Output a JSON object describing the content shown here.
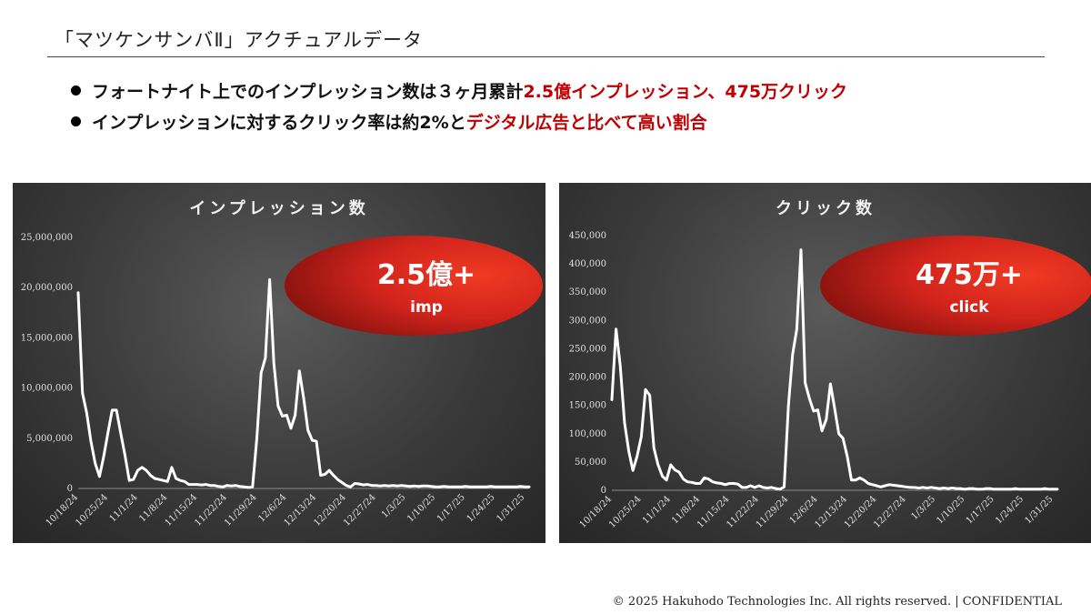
{
  "page": {
    "title": "「マツケンサンバⅡ」アクチュアルデータ",
    "bullets": [
      {
        "plain": "フォートナイト上でのインプレッション数は３ヶ月累計",
        "highlight": "2.5億インプレッション、475万クリック"
      },
      {
        "plain": "インプレッションに対するクリック率は約2%と",
        "highlight": "デジタル広告と比べて高い割合"
      }
    ],
    "footer": "© 2025 Hakuhodo Technologies Inc. All rights reserved. | CONFIDENTIAL"
  },
  "colors": {
    "highlight": "#c00000",
    "line": "#ffffff",
    "badge": "#d7251c",
    "panel_bg": "#3a3a3a"
  },
  "chart_data": [
    {
      "type": "line",
      "title": "インプレッション数",
      "badge": {
        "main": "2.5億+",
        "sub": "imp"
      },
      "ylim": [
        0,
        25000000
      ],
      "yticks": [
        0,
        5000000,
        10000000,
        15000000,
        20000000,
        25000000
      ],
      "ytick_labels": [
        "0",
        "5,000,000",
        "10,000,000",
        "15,000,000",
        "20,000,000",
        "25,000,000"
      ],
      "xtick_labels": [
        "10/18/24",
        "10/25/24",
        "11/1/24",
        "11/8/24",
        "11/15/24",
        "11/22/24",
        "11/29/24",
        "12/6/24",
        "12/13/24",
        "12/20/24",
        "12/27/24",
        "1/3/25",
        "1/10/25",
        "1/17/25",
        "1/24/25",
        "1/31/25"
      ],
      "x_start": "2024-10-18",
      "values": [
        19500000,
        9500000,
        7500000,
        4700000,
        2500000,
        1200000,
        3200000,
        5600000,
        7800000,
        7800000,
        5500000,
        3300000,
        800000,
        900000,
        1800000,
        2100000,
        1800000,
        1300000,
        1000000,
        900000,
        800000,
        700000,
        2100000,
        1000000,
        800000,
        700000,
        400000,
        400000,
        400000,
        350000,
        400000,
        300000,
        300000,
        200000,
        150000,
        300000,
        250000,
        300000,
        200000,
        150000,
        100000,
        150000,
        5000000,
        11500000,
        13000000,
        20800000,
        12500000,
        8200000,
        7200000,
        7300000,
        6000000,
        7300000,
        11700000,
        9000000,
        5800000,
        4800000,
        4700000,
        1300000,
        1400000,
        1800000,
        1300000,
        900000,
        600000,
        300000,
        150000,
        500000,
        450000,
        350000,
        400000,
        300000,
        300000,
        250000,
        300000,
        250000,
        300000,
        250000,
        300000,
        250000,
        200000,
        250000,
        200000,
        250000,
        250000,
        200000,
        150000,
        150000,
        200000,
        150000,
        150000,
        150000,
        150000,
        200000,
        150000,
        150000,
        150000,
        150000,
        150000,
        200000,
        150000,
        150000,
        150000,
        150000,
        150000,
        150000,
        200000,
        150000,
        150000
      ]
    },
    {
      "type": "line",
      "title": "クリック数",
      "badge": {
        "main": "475万+",
        "sub": "click"
      },
      "ylim": [
        0,
        450000
      ],
      "yticks": [
        0,
        50000,
        100000,
        150000,
        200000,
        250000,
        300000,
        350000,
        400000,
        450000
      ],
      "ytick_labels": [
        "0",
        "50,000",
        "100,000",
        "150,000",
        "200,000",
        "250,000",
        "300,000",
        "350,000",
        "400,000",
        "450,000"
      ],
      "xtick_labels": [
        "10/18/24",
        "10/25/24",
        "11/1/24",
        "11/8/24",
        "11/15/24",
        "11/22/24",
        "11/29/24",
        "12/6/24",
        "12/13/24",
        "12/20/24",
        "12/27/24",
        "1/3/25",
        "1/10/25",
        "1/17/25",
        "1/24/25",
        "1/31/25"
      ],
      "x_start": "2024-10-18",
      "values": [
        160000,
        285000,
        220000,
        120000,
        70000,
        35000,
        60000,
        95000,
        178000,
        168000,
        75000,
        45000,
        25000,
        18000,
        45000,
        36000,
        32000,
        20000,
        15000,
        14000,
        12000,
        12000,
        22000,
        20000,
        15000,
        13000,
        12000,
        10000,
        12000,
        12000,
        11000,
        5000,
        5000,
        8000,
        5000,
        8000,
        5000,
        4000,
        5000,
        3000,
        2000,
        6000,
        150000,
        240000,
        285000,
        425000,
        190000,
        162000,
        140000,
        142000,
        105000,
        125000,
        188000,
        145000,
        100000,
        92000,
        60000,
        18000,
        18000,
        22000,
        18000,
        12000,
        10000,
        8000,
        6000,
        8000,
        10000,
        9000,
        8000,
        7000,
        6000,
        5000,
        5000,
        4000,
        5000,
        4000,
        5000,
        4000,
        3000,
        4000,
        3000,
        4000,
        3000,
        3000,
        2000,
        3000,
        3000,
        2000,
        2000,
        3000,
        3000,
        2000,
        2000,
        2000,
        2000,
        2000,
        3000,
        2000,
        2000,
        2000,
        2000,
        2000,
        2000,
        3000,
        2000,
        2000,
        2000
      ]
    }
  ]
}
